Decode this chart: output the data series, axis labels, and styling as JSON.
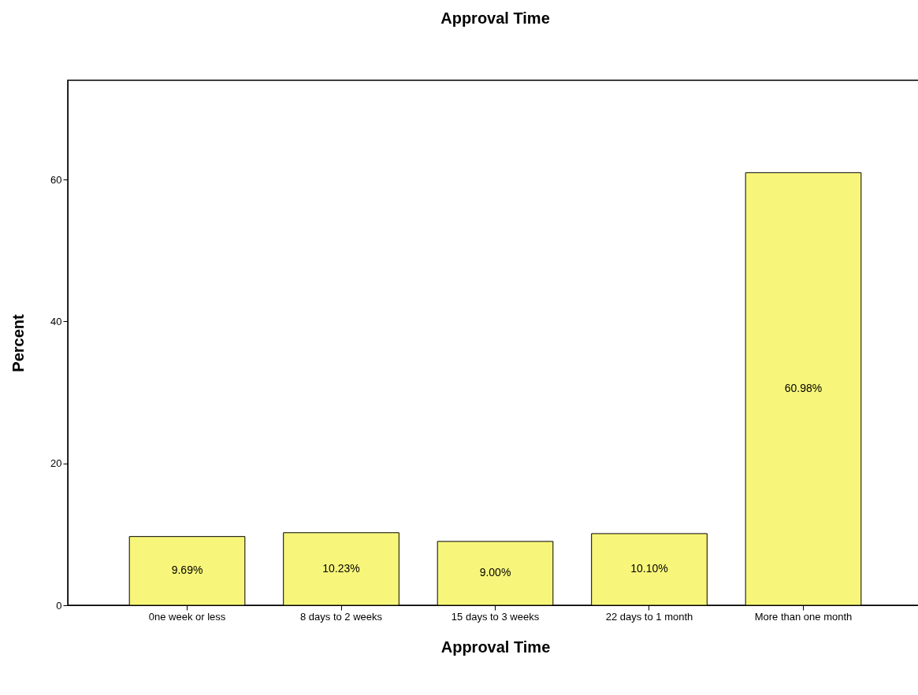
{
  "chart_data": {
    "type": "bar",
    "title": "Approval Time",
    "xlabel": "Approval Time",
    "ylabel": "Percent",
    "categories": [
      "0ne week or less",
      "8 days to 2 weeks",
      "15 days to 3 weeks",
      "22 days to 1 month",
      "More than one month"
    ],
    "values": [
      9.69,
      10.23,
      9.0,
      10.1,
      60.98
    ],
    "value_labels": [
      "9.69%",
      "10.23%",
      "9.00%",
      "10.10%",
      "60.98%"
    ],
    "color": "#f8f67a",
    "ylim": [
      0,
      74
    ],
    "yticks": [
      0,
      20,
      40,
      60
    ],
    "grid": false
  }
}
